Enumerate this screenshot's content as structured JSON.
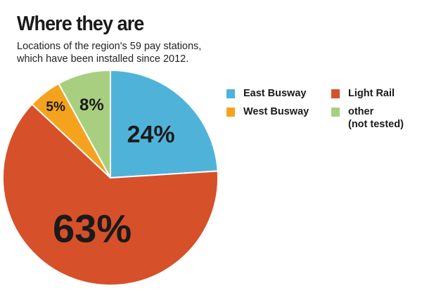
{
  "title": "Where they are",
  "subtitle": [
    "Locations of the region's 59 pay stations,",
    "which have been installed since 2012."
  ],
  "chart_data": {
    "type": "pie",
    "slices": [
      {
        "key": "east-busway",
        "label": "East Busway",
        "value": 24,
        "display": "24%",
        "color": "#4FB3D9"
      },
      {
        "key": "light-rail",
        "label": "Light Rail",
        "value": 63,
        "display": "63%",
        "color": "#D6502A"
      },
      {
        "key": "west-busway",
        "label": "West Busway",
        "value": 5,
        "display": "5%",
        "color": "#F5A31F"
      },
      {
        "key": "other",
        "label": "other",
        "label_sub": "(not tested)",
        "value": 8,
        "display": "8%",
        "color": "#A8CF7F"
      }
    ],
    "start": "12 o'clock",
    "direction": "clockwise",
    "legend_position": "right"
  }
}
